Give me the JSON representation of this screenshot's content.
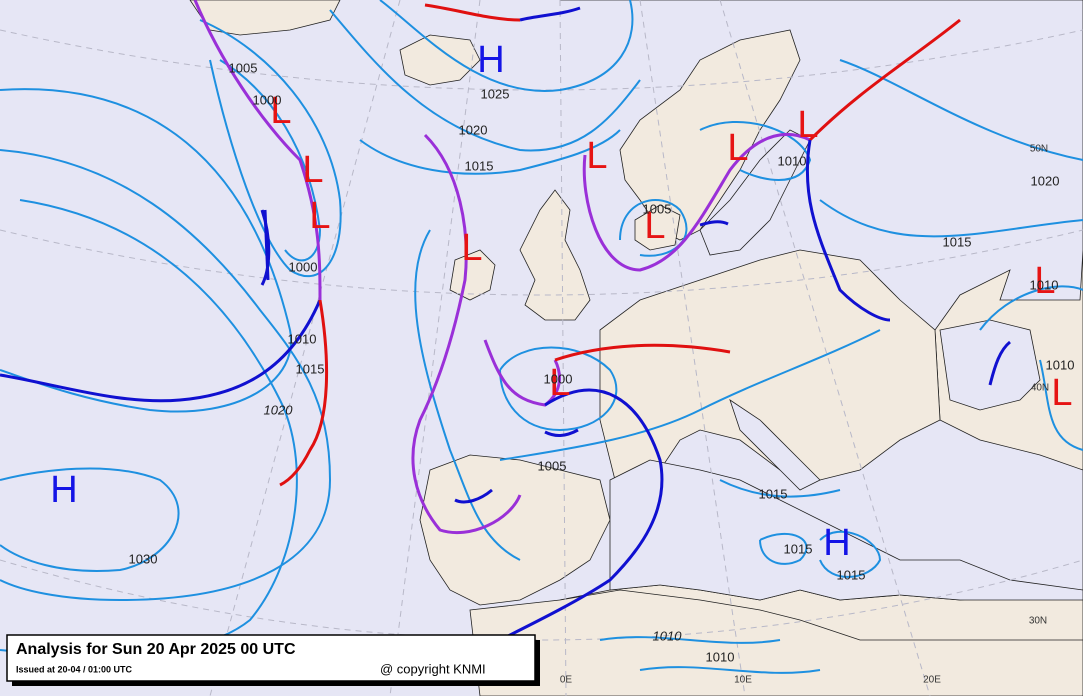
{
  "header": {
    "title": "Analysis for Sun 20 Apr 2025 00 UTC",
    "issued": "Issued at 20-04 / 01:00 UTC",
    "copyright": "@ copyright KNMI"
  },
  "pressure_centers": [
    "H",
    "H",
    "H",
    "L",
    "L",
    "L",
    "L",
    "L",
    "L",
    "L",
    "L",
    "L",
    "L",
    "L"
  ],
  "isobar_labels": [
    "1005",
    "1000",
    "1025",
    "1020",
    "1015",
    "1000",
    "1010",
    "1015",
    "1020",
    "1030",
    "1005",
    "1010",
    "1020",
    "1015",
    "1010",
    "1010",
    "1000",
    "1005",
    "1015",
    "1015",
    "1015",
    "1010",
    "1010"
  ],
  "grid_labels": [
    "50N",
    "40N",
    "30N",
    "0E",
    "10E",
    "20E"
  ]
}
